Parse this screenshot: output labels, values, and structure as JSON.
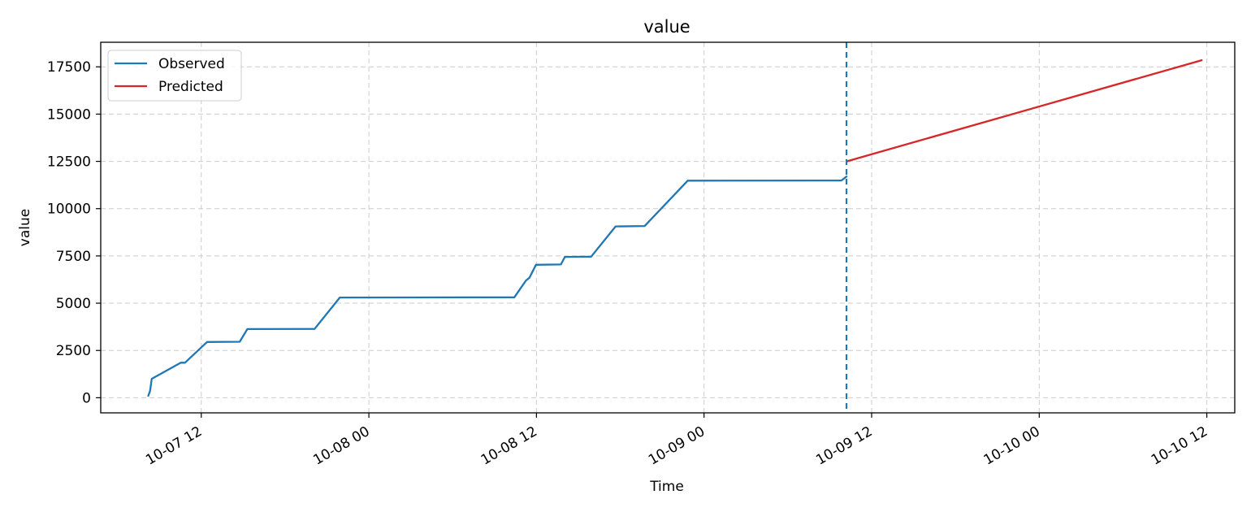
{
  "chart_data": {
    "type": "line",
    "title": "value",
    "xlabel": "Time",
    "ylabel": "value",
    "xlim": [
      "2025-10-07T04:48:00",
      "2025-10-10T14:00:00"
    ],
    "ylim": [
      -800,
      18800
    ],
    "x_ticks": [
      {
        "t": "2025-10-07T12:00:00",
        "label": "10-07 12"
      },
      {
        "t": "2025-10-08T00:00:00",
        "label": "10-08 00"
      },
      {
        "t": "2025-10-08T12:00:00",
        "label": "10-08 12"
      },
      {
        "t": "2025-10-09T00:00:00",
        "label": "10-09 00"
      },
      {
        "t": "2025-10-09T12:00:00",
        "label": "10-09 12"
      },
      {
        "t": "2025-10-10T00:00:00",
        "label": "10-10 00"
      },
      {
        "t": "2025-10-10T12:00:00",
        "label": "10-10 12"
      }
    ],
    "y_ticks": [
      0,
      2500,
      5000,
      7500,
      10000,
      12500,
      15000,
      17500
    ],
    "y_tick_labels": [
      "0",
      "2500",
      "5000",
      "7500",
      "10000",
      "12500",
      "15000",
      "17500"
    ],
    "grid": true,
    "legend_position": "top-left",
    "series": [
      {
        "name": "Observed",
        "color": "#1f77b4",
        "points": [
          [
            "2025-10-07T08:12:00",
            100
          ],
          [
            "2025-10-07T08:20:00",
            350
          ],
          [
            "2025-10-07T08:27:00",
            1000
          ],
          [
            "2025-10-07T10:32:00",
            1850
          ],
          [
            "2025-10-07T10:50:00",
            1850
          ],
          [
            "2025-10-07T12:25:00",
            2950
          ],
          [
            "2025-10-07T14:45:00",
            2960
          ],
          [
            "2025-10-07T15:18:00",
            3630
          ],
          [
            "2025-10-07T20:07:00",
            3640
          ],
          [
            "2025-10-07T21:55:00",
            5300
          ],
          [
            "2025-10-08T10:25:00",
            5310
          ],
          [
            "2025-10-08T11:15:00",
            6200
          ],
          [
            "2025-10-08T11:30:00",
            6350
          ],
          [
            "2025-10-08T11:58:00",
            7030
          ],
          [
            "2025-10-08T13:45:00",
            7050
          ],
          [
            "2025-10-08T14:02:00",
            7450
          ],
          [
            "2025-10-08T15:55:00",
            7460
          ],
          [
            "2025-10-08T17:40:00",
            9060
          ],
          [
            "2025-10-08T19:45:00",
            9080
          ],
          [
            "2025-10-08T22:50:00",
            11480
          ],
          [
            "2025-10-09T09:50:00",
            11490
          ],
          [
            "2025-10-09T10:12:00",
            11700
          ]
        ]
      },
      {
        "name": "Predicted",
        "color": "#d62728",
        "points": [
          [
            "2025-10-09T10:12:00",
            12500
          ],
          [
            "2025-10-10T11:38:00",
            17850
          ]
        ]
      }
    ],
    "forecast_start": {
      "t": "2025-10-09T10:12:00",
      "color": "#1f77b4",
      "style": "dashed"
    }
  }
}
